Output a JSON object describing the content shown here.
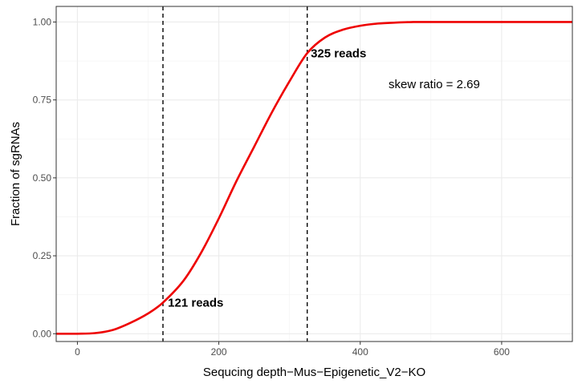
{
  "chart_data": {
    "type": "line",
    "xlabel": "Sequcing depth−Mus−Epigenetic_V2−KO",
    "ylabel": "Fraction of sgRNAs",
    "xlim": [
      -30,
      700
    ],
    "ylim": [
      -0.025,
      1.05
    ],
    "x_ticks": [
      0,
      200,
      400,
      600
    ],
    "x_tick_labels": [
      "0",
      "200",
      "400",
      "600"
    ],
    "y_ticks": [
      0,
      0.25,
      0.5,
      0.75,
      1.0
    ],
    "y_tick_labels": [
      "0.00",
      "0.25",
      "0.50",
      "0.75",
      "1.00"
    ],
    "grid": true,
    "series": [
      {
        "color": "#ee0000",
        "x": [
          -30,
          0,
          25,
          50,
          75,
          100,
          121,
          150,
          175,
          200,
          225,
          250,
          275,
          300,
          325,
          350,
          375,
          400,
          425,
          450,
          475,
          500,
          550,
          600,
          700
        ],
        "y": [
          0,
          0,
          0.002,
          0.012,
          0.035,
          0.065,
          0.1,
          0.17,
          0.26,
          0.37,
          0.49,
          0.6,
          0.71,
          0.81,
          0.9,
          0.95,
          0.975,
          0.988,
          0.995,
          0.998,
          1.0,
          1.0,
          1.0,
          1.0,
          1.0
        ]
      }
    ],
    "vlines": [
      121,
      325
    ],
    "annotations": [
      {
        "text": "121 reads",
        "x": 128,
        "y": 0.1,
        "bold": true
      },
      {
        "text": "325 reads",
        "x": 330,
        "y": 0.9,
        "bold": true
      },
      {
        "text": "skew ratio = 2.69",
        "x": 440,
        "y": 0.8,
        "bold": false
      }
    ]
  }
}
